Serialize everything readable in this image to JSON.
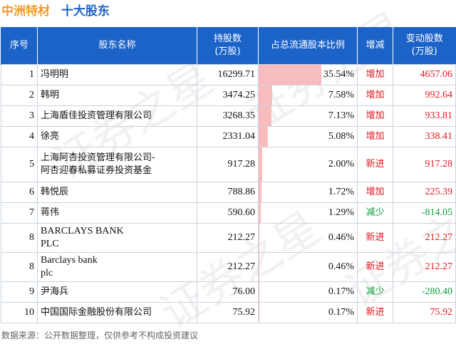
{
  "title": {
    "company": "中洲特材",
    "subtitle": "十大股东"
  },
  "headers": {
    "rank": "序号",
    "name": "股东名称",
    "shares_line1": "持股数",
    "shares_line2": "(万股)",
    "ratio": "占总流通股本比例",
    "change_type": "增减",
    "change_line1": "变动股数",
    "change_line2": "(万股)"
  },
  "rows": [
    {
      "rank": "1",
      "name_lines": [
        "冯明明"
      ],
      "shares": "16299.71",
      "ratio": "35.54%",
      "ratio_value": 35.54,
      "change_type": "增加",
      "direction": "up",
      "change": "4657.06"
    },
    {
      "rank": "2",
      "name_lines": [
        "韩明"
      ],
      "shares": "3474.25",
      "ratio": "7.58%",
      "ratio_value": 7.58,
      "change_type": "增加",
      "direction": "up",
      "change": "992.64"
    },
    {
      "rank": "3",
      "name_lines": [
        "上海盾佳投资管理有限公司"
      ],
      "shares": "3268.35",
      "ratio": "7.13%",
      "ratio_value": 7.13,
      "change_type": "增加",
      "direction": "up",
      "change": "933.81"
    },
    {
      "rank": "4",
      "name_lines": [
        "徐亮"
      ],
      "shares": "2331.04",
      "ratio": "5.08%",
      "ratio_value": 5.08,
      "change_type": "增加",
      "direction": "up",
      "change": "338.41"
    },
    {
      "rank": "5",
      "name_lines": [
        "上海阿杏投资管理有限公司-",
        "阿杏迎春私募证券投资基金"
      ],
      "shares": "917.28",
      "ratio": "2.00%",
      "ratio_value": 2.0,
      "change_type": "新进",
      "direction": "up",
      "change": "917.28"
    },
    {
      "rank": "6",
      "name_lines": [
        "韩悦辰"
      ],
      "shares": "788.86",
      "ratio": "1.72%",
      "ratio_value": 1.72,
      "change_type": "增加",
      "direction": "up",
      "change": "225.39"
    },
    {
      "rank": "7",
      "name_lines": [
        "蒋伟"
      ],
      "shares": "590.60",
      "ratio": "1.29%",
      "ratio_value": 1.29,
      "change_type": "减少",
      "direction": "down",
      "change": "-814.05"
    },
    {
      "rank": "8",
      "name_lines": [
        "BARCLAYS BANK",
        "PLC"
      ],
      "latin": true,
      "shares": "212.27",
      "ratio": "0.46%",
      "ratio_value": 0.46,
      "change_type": "新进",
      "direction": "up",
      "change": "212.27"
    },
    {
      "rank": "8",
      "name_lines": [
        "Barclays bank",
        "plc"
      ],
      "latin": true,
      "shares": "212.27",
      "ratio": "0.46%",
      "ratio_value": 0.46,
      "change_type": "新进",
      "direction": "up",
      "change": "212.27"
    },
    {
      "rank": "9",
      "name_lines": [
        "尹海兵"
      ],
      "shares": "76.00",
      "ratio": "0.17%",
      "ratio_value": 0.17,
      "change_type": "减少",
      "direction": "down",
      "change": "-280.40"
    },
    {
      "rank": "10",
      "name_lines": [
        "中国国际金融股份有限公司"
      ],
      "shares": "75.92",
      "ratio": "0.17%",
      "ratio_value": 0.17,
      "change_type": "新进",
      "direction": "up",
      "change": "75.92"
    }
  ],
  "footer": "数据来源：公开数据整理，仅供参考不构成投资建议",
  "watermark": "证券之星",
  "colors": {
    "company": "#f39b2c",
    "subtitle": "#1e62c9",
    "header_bg": "#1c63c8",
    "bar": "#f8bcbf",
    "increase": "#e0161f",
    "decrease": "#0a9b3a"
  }
}
